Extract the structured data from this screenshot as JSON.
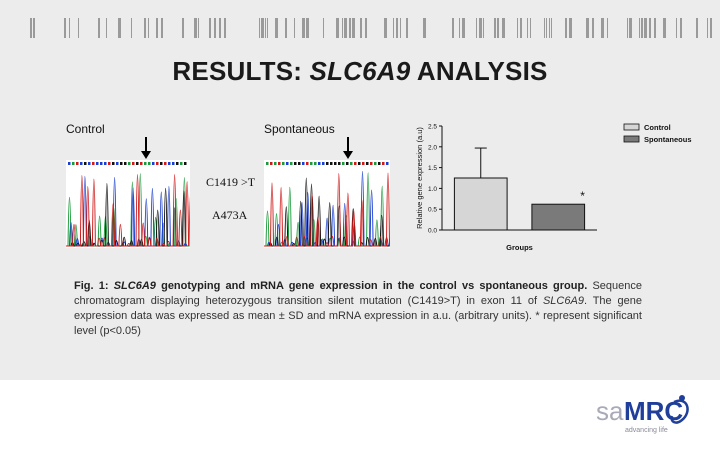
{
  "slide": {
    "title_prefix": "RESULTS: ",
    "title_gene": "SLC6A9",
    "title_suffix": " ANALYSIS"
  },
  "chromatogram": {
    "control_label": "Control",
    "spontaneous_label": "Spontaneous",
    "mutation_label_1": "C1419 >T",
    "mutation_label_2": "A473A"
  },
  "chart_data": {
    "type": "bar",
    "categories": [
      "Control",
      "Spontaneous"
    ],
    "values": [
      1.25,
      0.62
    ],
    "errors": [
      0.72,
      0
    ],
    "ylabel": "Relative gene expression (a.u)",
    "xlabel": "Groups",
    "ylim": [
      0,
      2.5
    ],
    "yticks": [
      "0.0",
      "0.5",
      "1.0",
      "1.5",
      "2.0",
      "2.5"
    ],
    "legend": [
      "Control",
      "Spontaneous"
    ],
    "legend_position": "top-right",
    "significance_marker": "*",
    "colors": [
      "#d6d6d6",
      "#7a7a7a"
    ]
  },
  "caption": {
    "lead_prefix": "Fig. 1: ",
    "lead_gene": "SLC6A9",
    "lead_rest": " genotyping and mRNA gene expression in the control vs spontaneous group.",
    "body_1": " Sequence chromatogram displaying heterozygous transition silent mutation (C1419>T) in exon 11 of ",
    "body_gene": "SLC6A9",
    "body_2": ". The gene expression data was expressed as mean ± SD and mRNA expression in a.u. (arbitrary units). * represent significant level (p<0.05)"
  },
  "logo": {
    "brand_sa": "sa",
    "brand_mrc": "MRC",
    "tagline": "advancing life"
  }
}
